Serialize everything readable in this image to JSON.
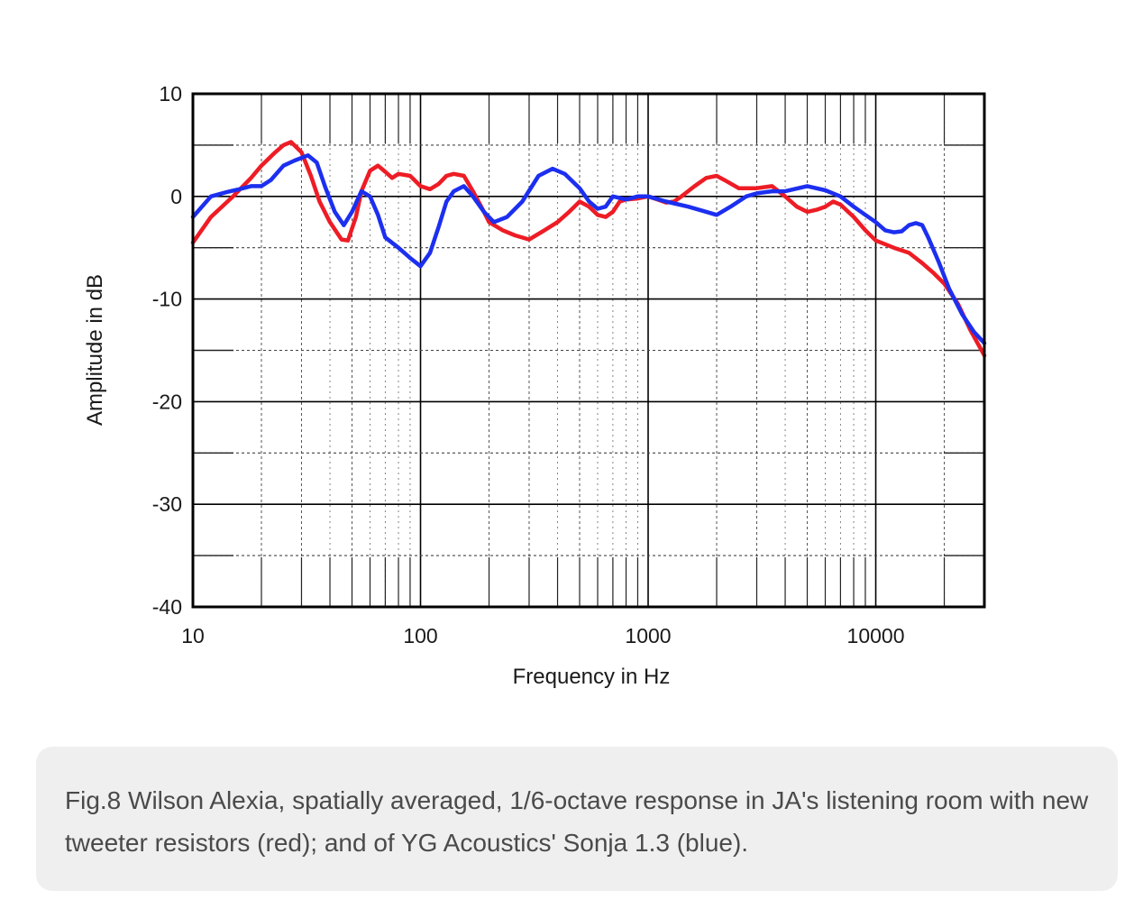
{
  "caption": "Fig.8 Wilson Alexia, spatially averaged, 1/6-octave response in JA's listening room with new tweeter resistors (red); and of YG Acoustics' Sonja 1.3 (blue).",
  "chart_data": {
    "type": "line",
    "title": "",
    "xlabel": "Frequency in Hz",
    "ylabel": "Amplitude in dB",
    "xscale": "log",
    "xlim": [
      10,
      30000
    ],
    "ylim": [
      -40,
      10
    ],
    "xticks": [
      "10",
      "100",
      "1000",
      "10000"
    ],
    "yticks": [
      "10",
      "0",
      "-10",
      "-20",
      "-30",
      "-40"
    ],
    "grid": true,
    "legend": "none",
    "series": [
      {
        "color": "#ee1c25",
        "points": [
          [
            10,
            -4.5
          ],
          [
            12,
            -2
          ],
          [
            15,
            0
          ],
          [
            18,
            1.8
          ],
          [
            20,
            3
          ],
          [
            23,
            4.3
          ],
          [
            25,
            5
          ],
          [
            27,
            5.3
          ],
          [
            30,
            4.3
          ],
          [
            33,
            2
          ],
          [
            36,
            -0.5
          ],
          [
            40,
            -2.5
          ],
          [
            45,
            -4.2
          ],
          [
            48,
            -4.3
          ],
          [
            52,
            -2
          ],
          [
            55,
            0.5
          ],
          [
            60,
            2.5
          ],
          [
            65,
            3
          ],
          [
            70,
            2.4
          ],
          [
            75,
            1.8
          ],
          [
            80,
            2.2
          ],
          [
            90,
            2
          ],
          [
            100,
            1
          ],
          [
            110,
            0.7
          ],
          [
            120,
            1.2
          ],
          [
            130,
            2
          ],
          [
            140,
            2.2
          ],
          [
            155,
            2
          ],
          [
            170,
            0.5
          ],
          [
            190,
            -1.5
          ],
          [
            200,
            -2.5
          ],
          [
            230,
            -3.3
          ],
          [
            260,
            -3.8
          ],
          [
            300,
            -4.2
          ],
          [
            350,
            -3.3
          ],
          [
            400,
            -2.5
          ],
          [
            450,
            -1.5
          ],
          [
            500,
            -0.5
          ],
          [
            550,
            -1
          ],
          [
            600,
            -1.8
          ],
          [
            650,
            -2
          ],
          [
            700,
            -1.5
          ],
          [
            750,
            -0.5
          ],
          [
            800,
            -0.3
          ],
          [
            900,
            -0.2
          ],
          [
            1000,
            0
          ],
          [
            1100,
            -0.3
          ],
          [
            1200,
            -0.6
          ],
          [
            1300,
            -0.5
          ],
          [
            1400,
            0
          ],
          [
            1600,
            1
          ],
          [
            1800,
            1.8
          ],
          [
            2000,
            2
          ],
          [
            2200,
            1.5
          ],
          [
            2500,
            0.8
          ],
          [
            3000,
            0.8
          ],
          [
            3500,
            1
          ],
          [
            4000,
            0
          ],
          [
            4500,
            -1
          ],
          [
            5000,
            -1.5
          ],
          [
            5500,
            -1.3
          ],
          [
            6000,
            -1
          ],
          [
            6500,
            -0.5
          ],
          [
            7000,
            -0.8
          ],
          [
            8000,
            -2
          ],
          [
            9000,
            -3.3
          ],
          [
            10000,
            -4.3
          ],
          [
            12000,
            -5
          ],
          [
            14000,
            -5.5
          ],
          [
            16000,
            -6.5
          ],
          [
            18000,
            -7.5
          ],
          [
            20000,
            -8.5
          ],
          [
            23000,
            -10.5
          ],
          [
            26000,
            -13
          ],
          [
            30000,
            -15.5
          ]
        ]
      },
      {
        "color": "#1c2ff0",
        "points": [
          [
            10,
            -2
          ],
          [
            12,
            0
          ],
          [
            14,
            0.4
          ],
          [
            16,
            0.7
          ],
          [
            18,
            1
          ],
          [
            20,
            1
          ],
          [
            22,
            1.6
          ],
          [
            25,
            3
          ],
          [
            28,
            3.5
          ],
          [
            32,
            4
          ],
          [
            35,
            3.3
          ],
          [
            38,
            1
          ],
          [
            42,
            -1.5
          ],
          [
            46,
            -2.8
          ],
          [
            50,
            -1.5
          ],
          [
            55,
            0.5
          ],
          [
            60,
            0
          ],
          [
            65,
            -1.8
          ],
          [
            70,
            -4
          ],
          [
            80,
            -5
          ],
          [
            90,
            -6
          ],
          [
            100,
            -6.8
          ],
          [
            110,
            -5.5
          ],
          [
            120,
            -3
          ],
          [
            130,
            -0.5
          ],
          [
            140,
            0.5
          ],
          [
            155,
            1
          ],
          [
            170,
            0
          ],
          [
            190,
            -1.5
          ],
          [
            210,
            -2.5
          ],
          [
            240,
            -2
          ],
          [
            280,
            -0.5
          ],
          [
            330,
            2
          ],
          [
            380,
            2.7
          ],
          [
            430,
            2.2
          ],
          [
            500,
            0.8
          ],
          [
            550,
            -0.5
          ],
          [
            600,
            -1.2
          ],
          [
            650,
            -1
          ],
          [
            700,
            0
          ],
          [
            800,
            -0.3
          ],
          [
            900,
            0
          ],
          [
            1000,
            0
          ],
          [
            1200,
            -0.5
          ],
          [
            1500,
            -1
          ],
          [
            1800,
            -1.5
          ],
          [
            2000,
            -1.8
          ],
          [
            2300,
            -1
          ],
          [
            2700,
            0
          ],
          [
            3000,
            0.3
          ],
          [
            3500,
            0.5
          ],
          [
            4000,
            0.5
          ],
          [
            5000,
            1
          ],
          [
            6000,
            0.6
          ],
          [
            7000,
            0
          ],
          [
            8000,
            -1
          ],
          [
            9000,
            -1.8
          ],
          [
            10000,
            -2.5
          ],
          [
            11000,
            -3.3
          ],
          [
            12000,
            -3.5
          ],
          [
            13000,
            -3.4
          ],
          [
            14000,
            -2.8
          ],
          [
            15000,
            -2.6
          ],
          [
            16000,
            -2.8
          ],
          [
            17000,
            -4
          ],
          [
            19000,
            -6.5
          ],
          [
            21000,
            -9
          ],
          [
            24000,
            -11.5
          ],
          [
            27000,
            -13.2
          ],
          [
            30000,
            -14.3
          ]
        ]
      }
    ]
  }
}
